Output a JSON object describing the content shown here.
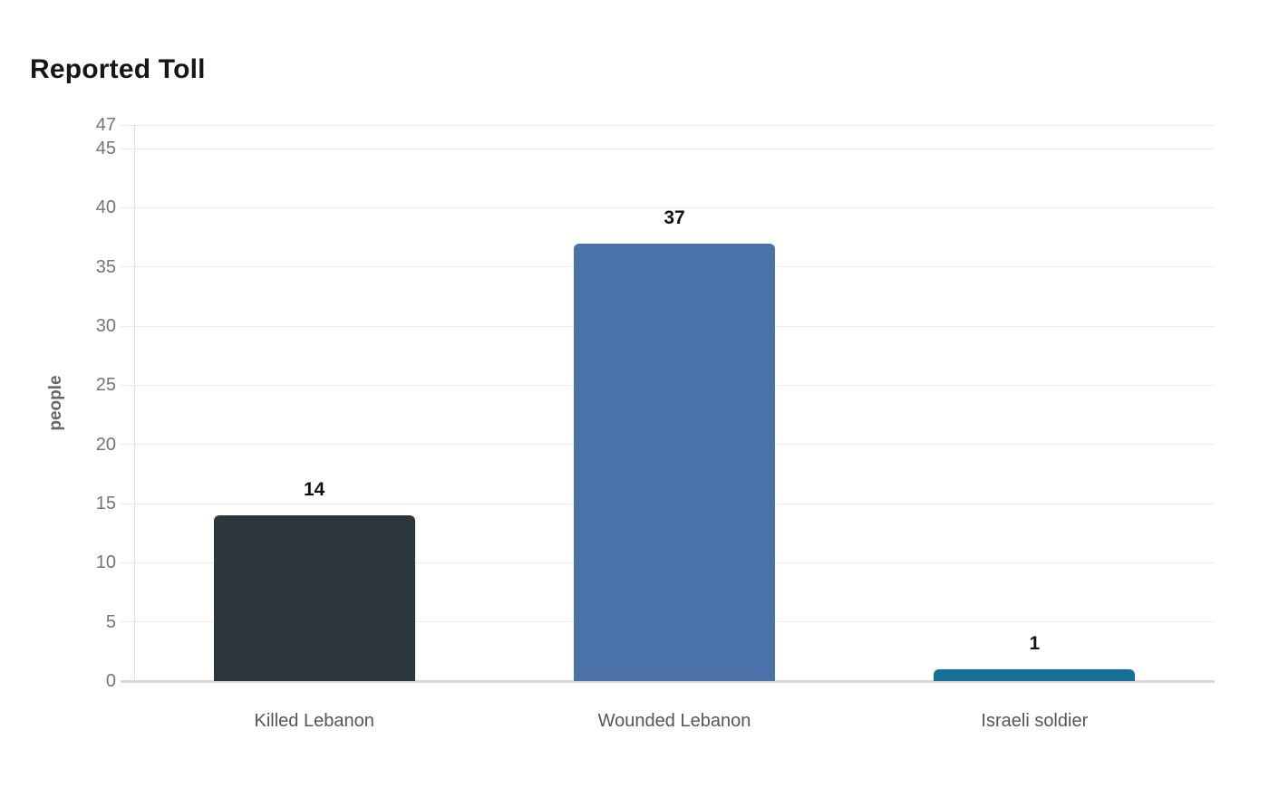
{
  "header": {
    "title": "Reported Toll"
  },
  "chart_data": {
    "type": "bar",
    "title": "Reported Toll",
    "categories": [
      "Killed Lebanon",
      "Wounded Lebanon",
      "Israeli soldier"
    ],
    "values": [
      14,
      37,
      1
    ],
    "value_labels": [
      "14",
      "37",
      "1"
    ],
    "bar_colors": [
      "#2d363a",
      "#4c72aa",
      "#176e99"
    ],
    "xlabel": "",
    "ylabel": "people",
    "ylim": [
      0,
      47
    ],
    "yticks": [
      0,
      5,
      10,
      15,
      20,
      25,
      30,
      35,
      40,
      45,
      47
    ],
    "grid": "horizontal-only",
    "legend": "none",
    "background": "#ffffff",
    "colors": {
      "grid_line": "#ececec",
      "zero_line": "#d9d9d9",
      "axis_dotted_line": "#c9c9c9",
      "tick_text": "#757575",
      "category_text": "#555555",
      "value_text": "#111111",
      "title_text": "#161616",
      "ylabel_text": "#666666"
    }
  }
}
